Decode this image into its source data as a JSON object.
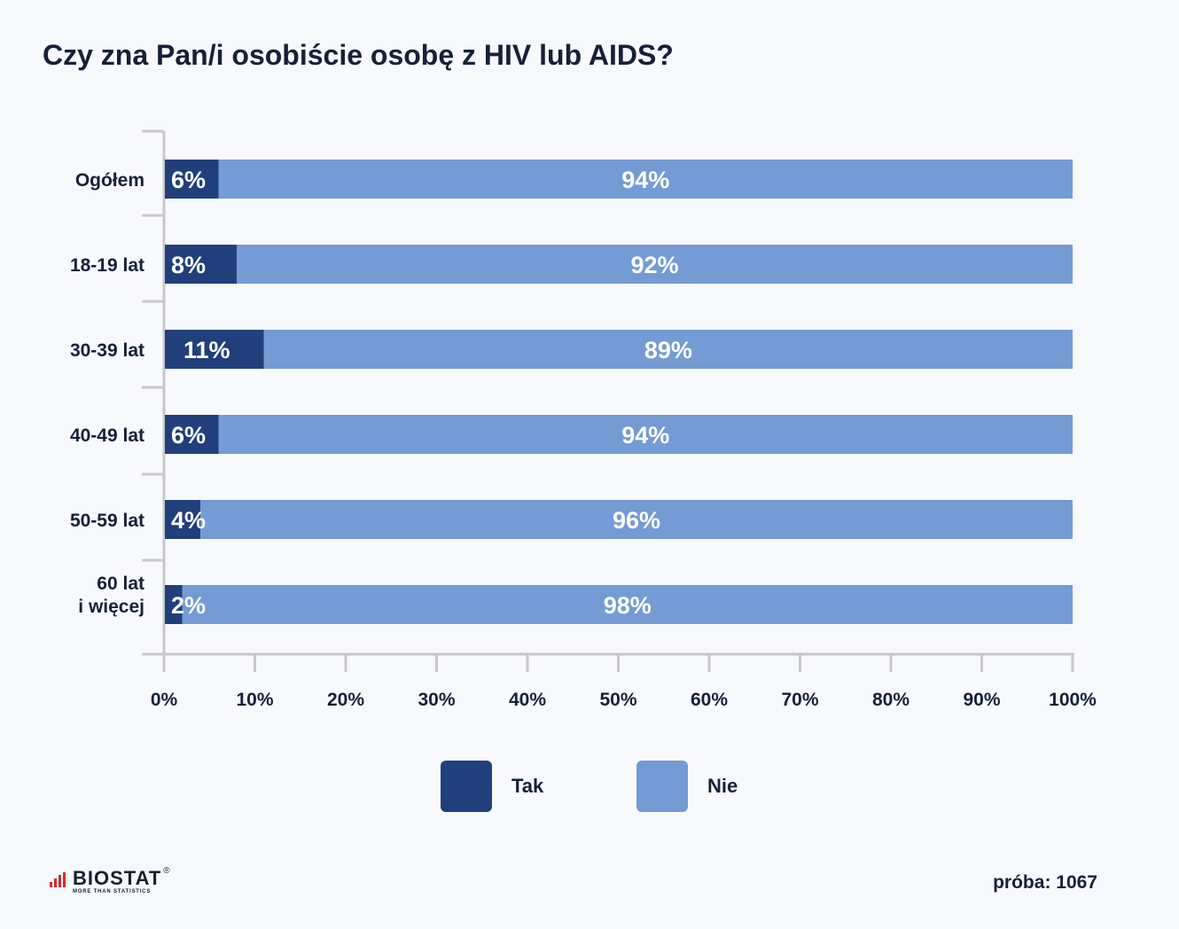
{
  "colors": {
    "tak": "#213f7b",
    "nie": "#749bd4",
    "axis": "#c8c8c8",
    "background": "#f7f9fd"
  },
  "chart_data": {
    "type": "bar",
    "orientation": "horizontal",
    "stacked": true,
    "title": "Czy zna Pan/i osobiście osobę z HIV lub AIDS?",
    "categories": [
      [
        "Ogółem"
      ],
      [
        "18-19 lat"
      ],
      [
        "30-39 lat"
      ],
      [
        "40-49 lat"
      ],
      [
        "50-59 lat"
      ],
      [
        "60 lat",
        "i więcej"
      ]
    ],
    "series": [
      {
        "name": "Tak",
        "values": [
          6,
          8,
          11,
          6,
          4,
          2
        ],
        "labels": [
          "6%",
          "8%",
          "11%",
          "6%",
          "4%",
          "2%"
        ]
      },
      {
        "name": "Nie",
        "values": [
          94,
          92,
          89,
          94,
          96,
          98
        ],
        "labels": [
          "94%",
          "92%",
          "89%",
          "94%",
          "96%",
          "98%"
        ]
      }
    ],
    "xlim": [
      0,
      100
    ],
    "xticks": [
      "0%",
      "10%",
      "20%",
      "30%",
      "40%",
      "50%",
      "60%",
      "70%",
      "80%",
      "90%",
      "100%"
    ],
    "legend_position": "bottom"
  },
  "legend": {
    "tak_label": "Tak",
    "nie_label": "Nie"
  },
  "footer": {
    "logo_name": "BIOSTAT",
    "logo_tagline": "MORE THAN STATISTICS",
    "logo_reg": "®",
    "sample": "próba: 1067"
  }
}
